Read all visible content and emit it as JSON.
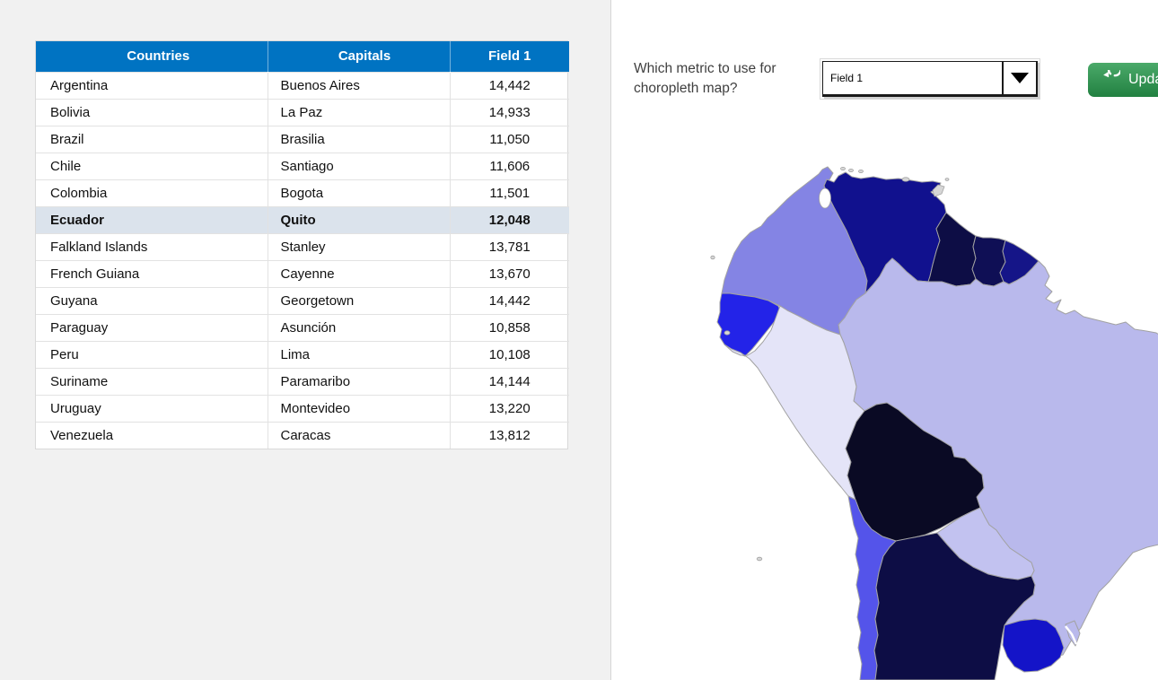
{
  "table": {
    "headers": [
      "Countries",
      "Capitals",
      "Field 1"
    ],
    "rows": [
      {
        "country": "Argentina",
        "capital": "Buenos Aires",
        "value": "14,442"
      },
      {
        "country": "Bolivia",
        "capital": "La Paz",
        "value": "14,933"
      },
      {
        "country": "Brazil",
        "capital": "Brasilia",
        "value": "11,050"
      },
      {
        "country": "Chile",
        "capital": "Santiago",
        "value": "11,606"
      },
      {
        "country": "Colombia",
        "capital": "Bogota",
        "value": "11,501"
      },
      {
        "country": "Ecuador",
        "capital": "Quito",
        "value": "12,048"
      },
      {
        "country": "Falkland Islands",
        "capital": "Stanley",
        "value": "13,781"
      },
      {
        "country": "French Guiana",
        "capital": "Cayenne",
        "value": "13,670"
      },
      {
        "country": "Guyana",
        "capital": "Georgetown",
        "value": "14,442"
      },
      {
        "country": "Paraguay",
        "capital": "Asunción",
        "value": "10,858"
      },
      {
        "country": "Peru",
        "capital": "Lima",
        "value": "10,108"
      },
      {
        "country": "Suriname",
        "capital": "Paramaribo",
        "value": "14,144"
      },
      {
        "country": "Uruguay",
        "capital": "Montevideo",
        "value": "13,220"
      },
      {
        "country": "Venezuela",
        "capital": "Caracas",
        "value": "13,812"
      }
    ],
    "selected_country": "Ecuador",
    "header_bg": "#0073c2",
    "selected_row_bg": "#dbe3ec"
  },
  "controls": {
    "question": "Which metric to use for choropleth map?",
    "dropdown_value": "Field 1",
    "update_label": "Update",
    "button_color": "#28994d"
  },
  "map": {
    "metric": "Field 1",
    "border_color": "#a2a2a2",
    "island_color": "#d6d6d6",
    "water_color": "#ffffff",
    "countries": [
      {
        "name": "Colombia",
        "value": 11501,
        "color": "#8484e4"
      },
      {
        "name": "Venezuela",
        "value": 13812,
        "color": "#11118e"
      },
      {
        "name": "Guyana",
        "value": 14442,
        "color": "#0d0d45"
      },
      {
        "name": "Suriname",
        "value": 14144,
        "color": "#0f0f55"
      },
      {
        "name": "French Guiana",
        "value": 13670,
        "color": "#151588"
      },
      {
        "name": "Ecuador",
        "value": 12048,
        "color": "#2323e8"
      },
      {
        "name": "Peru",
        "value": 10108,
        "color": "#e4e4f8"
      },
      {
        "name": "Brazil",
        "value": 11050,
        "color": "#b9b9ec"
      },
      {
        "name": "Bolivia",
        "value": 14933,
        "color": "#0a0a24"
      },
      {
        "name": "Paraguay",
        "value": 10858,
        "color": "#c2c2f0"
      },
      {
        "name": "Chile",
        "value": 11606,
        "color": "#5454ea"
      },
      {
        "name": "Argentina",
        "value": 14442,
        "color": "#0d0d45"
      },
      {
        "name": "Uruguay",
        "value": 13220,
        "color": "#1414c8"
      }
    ]
  }
}
